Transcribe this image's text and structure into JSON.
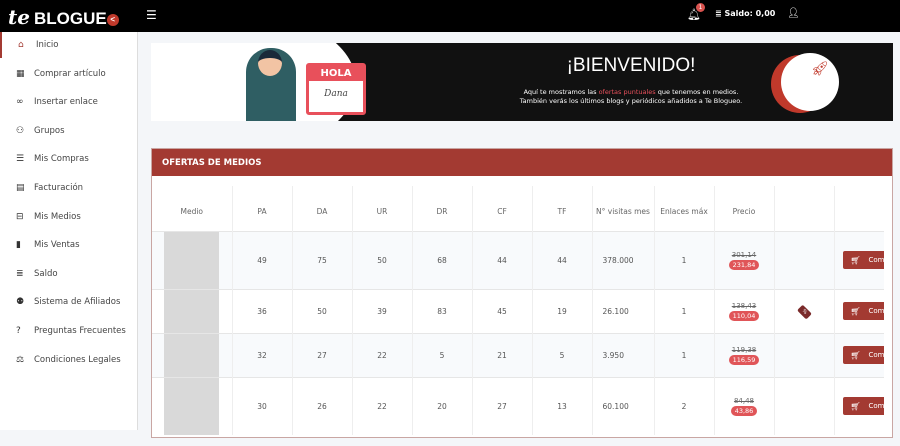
{
  "topbar": {
    "logo": "BLOGUE",
    "logo_prefix": "te",
    "menu_icon": "hamburger-icon",
    "notifications": "1",
    "saldo": "Saldo: 0,00"
  },
  "sidebar": {
    "items": [
      {
        "label": "Inicio",
        "icon": "home-icon",
        "active": true
      },
      {
        "label": "Comprar artículo",
        "icon": "grid-icon"
      },
      {
        "label": "Insertar enlace",
        "icon": "link-icon"
      },
      {
        "label": "Grupos",
        "icon": "user-plus-icon"
      },
      {
        "label": "Mis Compras",
        "icon": "list-icon"
      },
      {
        "label": "Facturación",
        "icon": "invoice-icon"
      },
      {
        "label": "Mis Medios",
        "icon": "inbox-icon"
      },
      {
        "label": "Mis Ventas",
        "icon": "briefcase-icon"
      },
      {
        "label": "Saldo",
        "icon": "coins-icon"
      },
      {
        "label": "Sistema de Afiliados",
        "icon": "users-icon"
      },
      {
        "label": "Preguntas Frecuentes",
        "icon": "question-icon"
      },
      {
        "label": "Condiciones Legales",
        "icon": "balance-icon"
      }
    ]
  },
  "banner": {
    "hola": "HOLA",
    "name": "Dana",
    "title": "¡BIENVENIDO!",
    "line1_a": "Aquí te mostramos las ",
    "line1_hl": "ofertas puntuales",
    "line1_b": " que tenemos en medios.",
    "line2": "También verás los últimos blogs y periódicos añadidos a Te Blogueo."
  },
  "offers": {
    "title": "OFERTAS DE MEDIOS",
    "columns": [
      "Medio",
      "PA",
      "DA",
      "UR",
      "DR",
      "CF",
      "TF",
      "N° visitas mes",
      "Enlaces máx",
      "Precio",
      "",
      ""
    ],
    "buy_label": "Comprar",
    "rows": [
      {
        "pa": "49",
        "da": "75",
        "ur": "50",
        "dr": "68",
        "cf": "44",
        "tf": "44",
        "visits": "378.000",
        "links": "1",
        "old": "301,14",
        "price": "231,84",
        "tag": false
      },
      {
        "pa": "36",
        "da": "50",
        "ur": "39",
        "dr": "83",
        "cf": "45",
        "tf": "19",
        "visits": "26.100",
        "links": "1",
        "old": "138,43",
        "price": "110,04",
        "tag": true
      },
      {
        "pa": "32",
        "da": "27",
        "ur": "22",
        "dr": "5",
        "cf": "21",
        "tf": "5",
        "visits": "3.950",
        "links": "1",
        "old": "119,38",
        "price": "116,59",
        "tag": false
      },
      {
        "pa": "30",
        "da": "26",
        "ur": "22",
        "dr": "20",
        "cf": "27",
        "tf": "13",
        "visits": "60.100",
        "links": "2",
        "old": "84,48",
        "price": "43,86",
        "tag": false
      }
    ]
  },
  "colors": {
    "accent": "#a33a32",
    "price_badge": "#e05558",
    "topbar": "#000000"
  }
}
